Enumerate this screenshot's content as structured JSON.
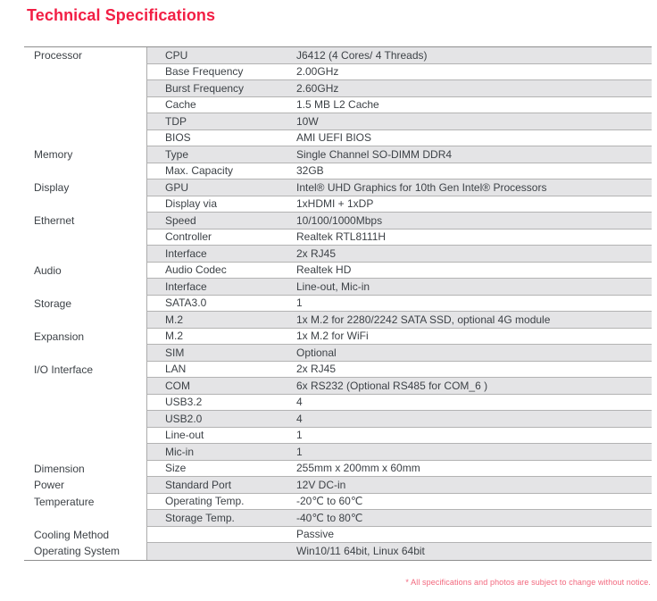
{
  "page": {
    "title": "Technical Specifications",
    "footnote": "* All specifications and photos are subject to change without notice."
  },
  "colors": {
    "accent": "#f21e44",
    "footnote": "#f2677d",
    "row_shade": "#e4e4e6",
    "grid_line": "#ababab",
    "text": "#3d4247"
  },
  "table": {
    "rows": [
      {
        "category": "Processor",
        "label": "CPU",
        "value": "J6412 (4 Cores/ 4 Threads)"
      },
      {
        "category": "",
        "label": "Base Frequency",
        "value": "2.00GHz"
      },
      {
        "category": "",
        "label": "Burst Frequency",
        "value": "2.60GHz"
      },
      {
        "category": "",
        "label": "Cache",
        "value": "1.5 MB L2 Cache"
      },
      {
        "category": "",
        "label": "TDP",
        "value": "10W"
      },
      {
        "category": "",
        "label": "BIOS",
        "value": "AMI UEFI BIOS"
      },
      {
        "category": "Memory",
        "label": "Type",
        "value": "Single Channel SO-DIMM DDR4"
      },
      {
        "category": "",
        "label": "Max. Capacity",
        "value": "32GB"
      },
      {
        "category": "Display",
        "label": "GPU",
        "value": "Intel® UHD Graphics for 10th Gen Intel® Processors"
      },
      {
        "category": "",
        "label": "Display via",
        "value": "1xHDMI + 1xDP"
      },
      {
        "category": "Ethernet",
        "label": "Speed",
        "value": "10/100/1000Mbps"
      },
      {
        "category": "",
        "label": "Controller",
        "value": "Realtek RTL8111H"
      },
      {
        "category": "",
        "label": "Interface",
        "value": "2x RJ45"
      },
      {
        "category": "Audio",
        "label": "Audio Codec",
        "value": "Realtek HD"
      },
      {
        "category": "",
        "label": "Interface",
        "value": "Line-out, Mic-in"
      },
      {
        "category": "Storage",
        "label": "SATA3.0",
        "value": "1"
      },
      {
        "category": "",
        "label": "M.2",
        "value": "1x M.2 for 2280/2242 SATA SSD, optional 4G module"
      },
      {
        "category": "Expansion",
        "label": "M.2",
        "value": "1x M.2 for WiFi"
      },
      {
        "category": "",
        "label": "SIM",
        "value": "Optional"
      },
      {
        "category": "I/O Interface",
        "label": "LAN",
        "value": "2x RJ45"
      },
      {
        "category": "",
        "label": "COM",
        "value": "6x RS232 (Optional RS485 for COM_6 )"
      },
      {
        "category": "",
        "label": "USB3.2",
        "value": "4"
      },
      {
        "category": "",
        "label": "USB2.0",
        "value": "4"
      },
      {
        "category": "",
        "label": "Line-out",
        "value": "1"
      },
      {
        "category": "",
        "label": "Mic-in",
        "value": "1"
      },
      {
        "category": "Dimension",
        "label": "Size",
        "value": "255mm x 200mm x 60mm"
      },
      {
        "category": "Power",
        "label": "Standard Port",
        "value": "12V DC-in"
      },
      {
        "category": "Temperature",
        "label": "Operating Temp.",
        "value": "-20℃ to 60℃"
      },
      {
        "category": "",
        "label": "Storage Temp.",
        "value": "-40℃ to 80℃"
      },
      {
        "category": "Cooling Method",
        "label": "",
        "value": "Passive"
      },
      {
        "category": "Operating System",
        "label": "",
        "value": "Win10/11 64bit, Linux 64bit"
      }
    ]
  }
}
